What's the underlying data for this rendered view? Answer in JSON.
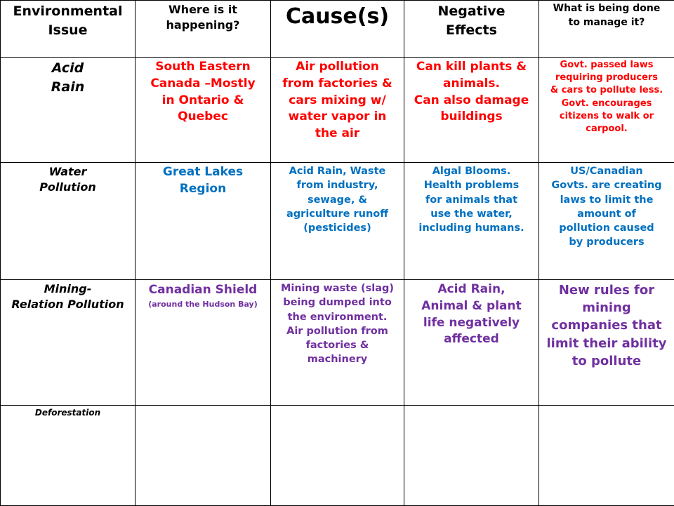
{
  "headers": {
    "issue": [
      "Environmental",
      "Issue"
    ],
    "where": [
      "Where is it",
      "happening?"
    ],
    "cause": "Cause(s)",
    "negative": [
      "Negative",
      "Effects"
    ],
    "manage": [
      "What is being done",
      "to manage it?"
    ]
  },
  "colors": {
    "red": "#ff0000",
    "blue": "#0070c0",
    "purple": "#7030a0"
  },
  "rows": [
    {
      "issue": [
        "Acid",
        "Rain"
      ],
      "where": [
        "South Eastern",
        "Canada –Mostly",
        "in Ontario &",
        "Quebec"
      ],
      "cause": [
        "Air pollution",
        "from factories &",
        "cars mixing w/",
        "water vapor in",
        "the air"
      ],
      "negative": [
        "Can kill plants &",
        "animals.",
        "Can also damage",
        "buildings"
      ],
      "manage": [
        "Govt. passed laws",
        "requiring producers",
        "& cars to pollute less.",
        "Govt. encourages",
        "citizens to walk or",
        "carpool."
      ]
    },
    {
      "issue": [
        "Water",
        "Pollution"
      ],
      "where": [
        "Great Lakes",
        "Region"
      ],
      "cause": [
        "Acid Rain, Waste",
        "from industry,",
        "sewage, &",
        "agriculture runoff",
        "(pesticides)"
      ],
      "negative": [
        "Algal Blooms.",
        "Health problems",
        "for animals that",
        "use the water,",
        "including humans."
      ],
      "manage": [
        "US/Canadian",
        "Govts.  are creating",
        "laws to limit the",
        "amount of",
        "pollution caused",
        "by producers"
      ]
    },
    {
      "issue": [
        "Mining-",
        "Relation Pollution"
      ],
      "where": [
        "Canadian Shield"
      ],
      "where_note": "(around the Hudson Bay)",
      "cause": [
        "Mining waste (slag)",
        "being dumped into",
        "the environment.",
        "Air pollution from",
        "factories &",
        "machinery"
      ],
      "negative": [
        "Acid Rain,",
        "Animal & plant",
        "life negatively",
        "affected"
      ],
      "manage": [
        "New rules for",
        "mining",
        "companies that",
        "limit their ability",
        "to pollute"
      ]
    },
    {
      "issue": [
        "Deforestation"
      ],
      "where": [],
      "cause": [],
      "negative": [],
      "manage": []
    }
  ]
}
